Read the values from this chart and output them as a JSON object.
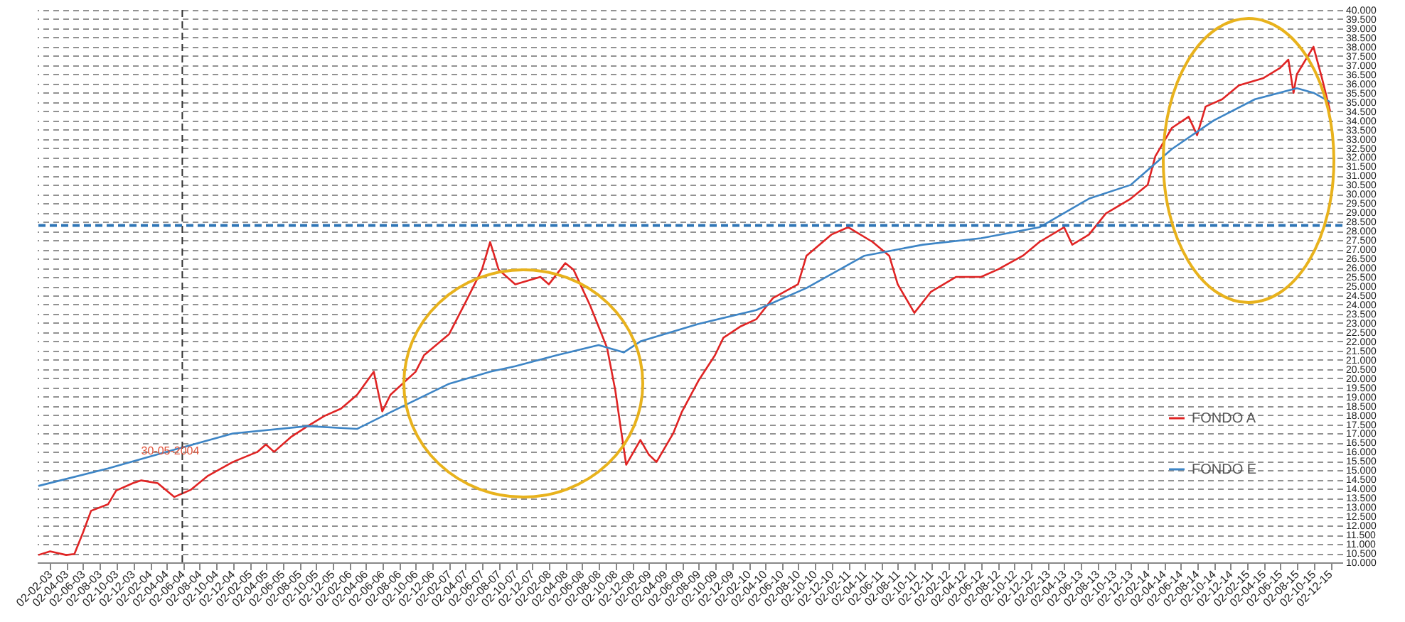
{
  "chart_data": {
    "type": "line",
    "legend": "bottom right",
    "grid": "y",
    "line_style": "solid",
    "xlim": [
      "2002-12-15",
      "2016-01-15"
    ],
    "ylim": [
      10000,
      40000
    ],
    "yticks": [
      {
        "value": 10000,
        "label": "10.000"
      },
      {
        "value": 10500,
        "label": "10.500"
      },
      {
        "value": 11000,
        "label": "11.000"
      },
      {
        "value": 11500,
        "label": "11.500"
      },
      {
        "value": 12000,
        "label": "12.000"
      },
      {
        "value": 12500,
        "label": "12.500"
      },
      {
        "value": 13000,
        "label": "13.000"
      },
      {
        "value": 13500,
        "label": "13.500"
      },
      {
        "value": 14000,
        "label": "14.000"
      },
      {
        "value": 14500,
        "label": "14.500"
      },
      {
        "value": 15000,
        "label": "15.000"
      },
      {
        "value": 15500,
        "label": "15.500"
      },
      {
        "value": 16000,
        "label": "16.000"
      },
      {
        "value": 16500,
        "label": "16.500"
      },
      {
        "value": 17000,
        "label": "17.000"
      },
      {
        "value": 17500,
        "label": "17.500"
      },
      {
        "value": 18000,
        "label": "18.000"
      },
      {
        "value": 18500,
        "label": "18.500"
      },
      {
        "value": 19000,
        "label": "19.000"
      },
      {
        "value": 19500,
        "label": "19.500"
      },
      {
        "value": 20000,
        "label": "20.000"
      },
      {
        "value": 20500,
        "label": "20.500"
      },
      {
        "value": 21000,
        "label": "21.000"
      },
      {
        "value": 21500,
        "label": "21.500"
      },
      {
        "value": 22000,
        "label": "22.000"
      },
      {
        "value": 22500,
        "label": "22.500"
      },
      {
        "value": 23000,
        "label": "23.000"
      },
      {
        "value": 23500,
        "label": "23.500"
      },
      {
        "value": 24000,
        "label": "24.000"
      },
      {
        "value": 24500,
        "label": "24.500"
      },
      {
        "value": 25000,
        "label": "25.000"
      },
      {
        "value": 25500,
        "label": "25.500"
      },
      {
        "value": 26000,
        "label": "26.000"
      },
      {
        "value": 26500,
        "label": "26.500"
      },
      {
        "value": 27000,
        "label": "27.000"
      },
      {
        "value": 27500,
        "label": "27.500"
      },
      {
        "value": 28000,
        "label": "28.000"
      },
      {
        "value": 28500,
        "label": "28.500"
      },
      {
        "value": 29000,
        "label": "29.000"
      },
      {
        "value": 29500,
        "label": "29.500"
      },
      {
        "value": 30000,
        "label": "30.000"
      },
      {
        "value": 30500,
        "label": "30.500"
      },
      {
        "value": 31000,
        "label": "31.000"
      },
      {
        "value": 31500,
        "label": "31.500"
      },
      {
        "value": 32000,
        "label": "32.000"
      },
      {
        "value": 32500,
        "label": "32.500"
      },
      {
        "value": 33000,
        "label": "33.000"
      },
      {
        "value": 33500,
        "label": "33.500"
      },
      {
        "value": 34000,
        "label": "34.000"
      },
      {
        "value": 34500,
        "label": "34.500"
      },
      {
        "value": 35000,
        "label": "35.000"
      },
      {
        "value": 35500,
        "label": "35.500"
      },
      {
        "value": 36000,
        "label": "36.000"
      },
      {
        "value": 36500,
        "label": "36.500"
      },
      {
        "value": 37000,
        "label": "37.000"
      },
      {
        "value": 37500,
        "label": "37.500"
      },
      {
        "value": 38000,
        "label": "38.000"
      },
      {
        "value": 38500,
        "label": "38.500"
      },
      {
        "value": 39000,
        "label": "39.000"
      },
      {
        "value": 39500,
        "label": "39.500"
      },
      {
        "value": 40000,
        "label": "40.000"
      }
    ],
    "xticks": [
      {
        "value": "2003-02-02",
        "label": "02-02-03"
      },
      {
        "value": "2003-04-02",
        "label": "02-04-03"
      },
      {
        "value": "2003-06-02",
        "label": "02-06-03"
      },
      {
        "value": "2003-08-02",
        "label": "02-08-03"
      },
      {
        "value": "2003-10-02",
        "label": "02-10-03"
      },
      {
        "value": "2003-12-02",
        "label": "02-12-03"
      },
      {
        "value": "2004-02-02",
        "label": "02-02-04"
      },
      {
        "value": "2004-04-02",
        "label": "02-04-04"
      },
      {
        "value": "2004-06-02",
        "label": "02-06-04"
      },
      {
        "value": "2004-08-02",
        "label": "02-08-04"
      },
      {
        "value": "2004-10-02",
        "label": "02-10-04"
      },
      {
        "value": "2004-12-02",
        "label": "02-12-04"
      },
      {
        "value": "2005-02-02",
        "label": "02-02-05"
      },
      {
        "value": "2005-04-02",
        "label": "02-04-05"
      },
      {
        "value": "2005-06-02",
        "label": "02-06-05"
      },
      {
        "value": "2005-08-02",
        "label": "02-08-05"
      },
      {
        "value": "2005-10-02",
        "label": "02-10-05"
      },
      {
        "value": "2005-12-02",
        "label": "02-12-05"
      },
      {
        "value": "2006-02-02",
        "label": "02-02-06"
      },
      {
        "value": "2006-04-02",
        "label": "02-04-06"
      },
      {
        "value": "2006-06-02",
        "label": "02-06-06"
      },
      {
        "value": "2006-08-02",
        "label": "02-08-06"
      },
      {
        "value": "2006-10-02",
        "label": "02-10-06"
      },
      {
        "value": "2006-12-02",
        "label": "02-12-06"
      },
      {
        "value": "2007-02-02",
        "label": "02-02-07"
      },
      {
        "value": "2007-04-02",
        "label": "02-04-07"
      },
      {
        "value": "2007-06-02",
        "label": "02-06-07"
      },
      {
        "value": "2007-08-02",
        "label": "02-08-07"
      },
      {
        "value": "2007-10-02",
        "label": "02-10-07"
      },
      {
        "value": "2007-12-02",
        "label": "02-12-07"
      },
      {
        "value": "2008-02-02",
        "label": "02-02-08"
      },
      {
        "value": "2008-04-02",
        "label": "02-04-08"
      },
      {
        "value": "2008-06-02",
        "label": "02-06-08"
      },
      {
        "value": "2008-08-02",
        "label": "02-08-08"
      },
      {
        "value": "2008-10-02",
        "label": "02-10-08"
      },
      {
        "value": "2008-12-02",
        "label": "02-12-08"
      },
      {
        "value": "2009-02-02",
        "label": "02-02-09"
      },
      {
        "value": "2009-04-02",
        "label": "02-04-09"
      },
      {
        "value": "2009-06-02",
        "label": "02-06-09"
      },
      {
        "value": "2009-08-02",
        "label": "02-08-09"
      },
      {
        "value": "2009-10-02",
        "label": "02-10-09"
      },
      {
        "value": "2009-12-02",
        "label": "02-12-09"
      },
      {
        "value": "2010-02-02",
        "label": "02-02-10"
      },
      {
        "value": "2010-04-02",
        "label": "02-04-10"
      },
      {
        "value": "2010-06-02",
        "label": "02-06-10"
      },
      {
        "value": "2010-08-02",
        "label": "02-08-10"
      },
      {
        "value": "2010-10-02",
        "label": "02-10-10"
      },
      {
        "value": "2010-12-02",
        "label": "02-12-10"
      },
      {
        "value": "2011-02-02",
        "label": "02-02-11"
      },
      {
        "value": "2011-04-02",
        "label": "02-04-11"
      },
      {
        "value": "2011-06-02",
        "label": "02-06-11"
      },
      {
        "value": "2011-08-02",
        "label": "02-08-11"
      },
      {
        "value": "2011-10-02",
        "label": "02-10-11"
      },
      {
        "value": "2011-12-02",
        "label": "02-12-11"
      },
      {
        "value": "2012-02-02",
        "label": "02-02-12"
      },
      {
        "value": "2012-04-02",
        "label": "02-04-12"
      },
      {
        "value": "2012-06-02",
        "label": "02-06-12"
      },
      {
        "value": "2012-08-02",
        "label": "02-08-12"
      },
      {
        "value": "2012-10-02",
        "label": "02-10-12"
      },
      {
        "value": "2012-12-02",
        "label": "02-12-12"
      },
      {
        "value": "2013-02-02",
        "label": "02-02-13"
      },
      {
        "value": "2013-04-02",
        "label": "02-04-13"
      },
      {
        "value": "2013-06-02",
        "label": "02-06-13"
      },
      {
        "value": "2013-08-02",
        "label": "02-08-13"
      },
      {
        "value": "2013-10-02",
        "label": "02-10-13"
      },
      {
        "value": "2013-12-02",
        "label": "02-12-13"
      },
      {
        "value": "2014-02-02",
        "label": "02-02-14"
      },
      {
        "value": "2014-04-02",
        "label": "02-04-14"
      },
      {
        "value": "2014-06-02",
        "label": "02-06-14"
      },
      {
        "value": "2014-08-02",
        "label": "02-08-14"
      },
      {
        "value": "2014-10-02",
        "label": "02-10-14"
      },
      {
        "value": "2014-12-02",
        "label": "02-12-14"
      },
      {
        "value": "2015-02-02",
        "label": "02-02-15"
      },
      {
        "value": "2015-04-02",
        "label": "02-04-15"
      },
      {
        "value": "2015-06-02",
        "label": "02-06-15"
      },
      {
        "value": "2015-08-02",
        "label": "02-08-15"
      },
      {
        "value": "2015-10-02",
        "label": "02-10-15"
      },
      {
        "value": "2015-12-02",
        "label": "02-12-15"
      }
    ],
    "series": [
      {
        "name": "FONDO A",
        "color": "#e02424",
        "x": [
          "2002-12-20",
          "2003-02",
          "2003-04",
          "2003-05",
          "2003-06",
          "2003-07",
          "2003-09",
          "2003-10",
          "2003-12",
          "2004-01",
          "2004-03",
          "2004-05",
          "2004-07",
          "2004-09",
          "2004-12",
          "2005-03",
          "2005-04",
          "2005-05",
          "2005-07",
          "2005-09",
          "2005-11",
          "2006-01",
          "2006-03",
          "2006-05",
          "2006-06",
          "2006-07",
          "2006-10",
          "2006-11",
          "2007-02",
          "2007-04",
          "2007-06",
          "2007-07",
          "2007-08",
          "2007-10",
          "2008-01",
          "2008-02",
          "2008-04",
          "2008-05",
          "2008-07",
          "2008-08",
          "2008-09",
          "2008-10-01",
          "2008-10-20",
          "2008-11-10",
          "2009-01",
          "2009-02",
          "2009-03",
          "2009-05",
          "2009-06",
          "2009-08",
          "2009-10",
          "2009-11",
          "2010-01",
          "2010-03",
          "2010-05",
          "2010-08",
          "2010-09",
          "2010-12",
          "2011-02",
          "2011-05",
          "2011-07",
          "2011-08",
          "2011-10",
          "2011-12",
          "2012-03",
          "2012-06",
          "2012-08",
          "2012-11",
          "2013-01",
          "2013-04",
          "2013-05",
          "2013-07",
          "2013-09",
          "2013-12",
          "2014-02",
          "2014-03",
          "2014-05",
          "2014-07",
          "2014-08",
          "2014-09",
          "2014-11",
          "2015-01",
          "2015-04",
          "2015-06",
          "2015-07-01",
          "2015-07-20",
          "2015-08",
          "2015-10",
          "2015-11",
          "2015-12"
        ],
        "values": [
          10400,
          10600,
          10400,
          10450,
          11600,
          12800,
          13150,
          13900,
          14300,
          14450,
          14300,
          13550,
          13950,
          14700,
          15450,
          16000,
          16400,
          16000,
          16800,
          17400,
          17950,
          18350,
          19100,
          20350,
          18200,
          19100,
          20350,
          21250,
          22400,
          24100,
          25900,
          27400,
          25900,
          25100,
          25500,
          25100,
          26250,
          25900,
          23950,
          22800,
          21650,
          19350,
          17400,
          15300,
          16650,
          15850,
          15450,
          17000,
          18150,
          19850,
          21250,
          22200,
          22800,
          23200,
          24350,
          25100,
          26650,
          27800,
          28200,
          27400,
          26650,
          25100,
          23550,
          24700,
          25500,
          25500,
          25900,
          26650,
          27400,
          28200,
          27250,
          27800,
          28950,
          29750,
          30500,
          32050,
          33600,
          34200,
          33200,
          34750,
          35150,
          35900,
          36300,
          36850,
          37300,
          35500,
          36500,
          38000,
          36300,
          34500
        ]
      },
      {
        "name": "FONDO E",
        "color": "#3d85c6",
        "x": [
          "2002-12-20",
          "2003-09",
          "2004-04",
          "2004-12",
          "2005-09",
          "2006-03",
          "2006-07",
          "2007-02",
          "2007-07",
          "2007-10",
          "2008-03",
          "2008-08",
          "2008-11",
          "2009-01",
          "2009-08",
          "2010-03",
          "2010-09",
          "2011-04",
          "2011-11",
          "2012-06",
          "2013-01",
          "2013-07",
          "2013-12",
          "2014-05",
          "2014-10",
          "2015-03",
          "2015-08",
          "2015-10",
          "2015-12"
        ],
        "values": [
          14150,
          15100,
          16000,
          17000,
          17400,
          17250,
          18150,
          19700,
          20350,
          20650,
          21250,
          21800,
          21400,
          22000,
          22950,
          23700,
          24900,
          26650,
          27250,
          27600,
          28200,
          29750,
          30500,
          32450,
          34000,
          35150,
          35750,
          35500,
          35000
        ]
      }
    ],
    "ref_lines": [
      {
        "axis": "x",
        "value": "2004-05-30",
        "label": "30-05-2004",
        "color": "#333333",
        "line_style": "dashed"
      },
      {
        "axis": "y",
        "value": 28300,
        "color": "#2e75b6",
        "line_style": "dashed"
      }
    ]
  }
}
